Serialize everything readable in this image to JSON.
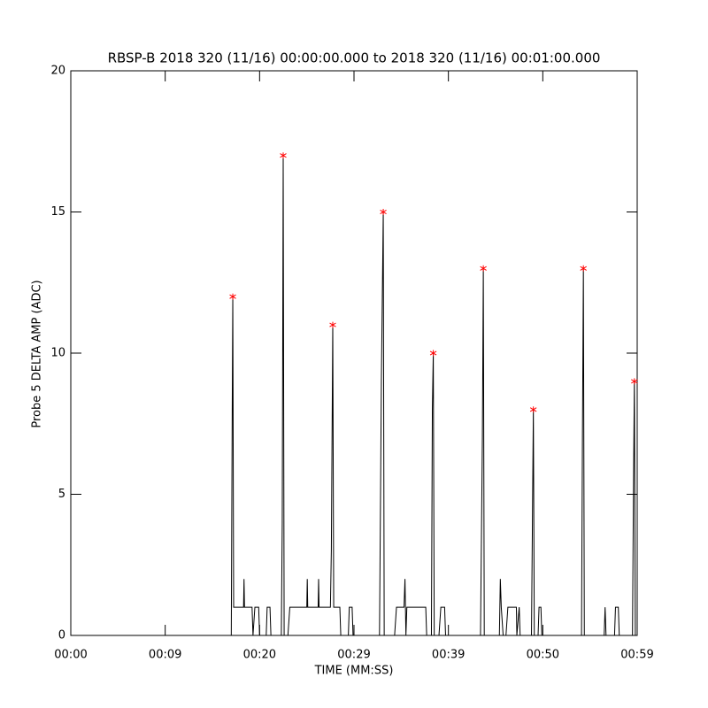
{
  "chart_data": {
    "type": "line",
    "title": "RBSP-B 2018 320 (11/16) 00:00:00.000 to 2018 320 (11/16) 00:01:00.000",
    "x_label": "TIME (MM:SS)",
    "y_label": "Probe 5 DELTA AMP (ADC)",
    "xlim": [
      0,
      60
    ],
    "ylim": [
      0,
      20
    ],
    "xticks": [
      {
        "value": 0,
        "label": "00:00"
      },
      {
        "value": 10,
        "label": "00:09"
      },
      {
        "value": 20,
        "label": "00:20"
      },
      {
        "value": 30,
        "label": "00:29"
      },
      {
        "value": 40,
        "label": "00:39"
      },
      {
        "value": 50,
        "label": "00:50"
      },
      {
        "value": 60,
        "label": "00:59"
      }
    ],
    "yticks": [
      0,
      5,
      10,
      15,
      20
    ],
    "line": {
      "color": "#000000",
      "x": [
        0,
        17.0,
        17.1,
        17.16,
        17.25,
        18.3,
        18.35,
        18.4,
        19.2,
        19.3,
        19.5,
        19.9,
        20.0,
        20.7,
        20.8,
        21.1,
        21.2,
        22.3,
        22.4,
        22.5,
        22.6,
        23.0,
        23.2,
        25.0,
        25.05,
        25.1,
        26.2,
        26.25,
        26.3,
        27.5,
        27.6,
        27.75,
        27.85,
        28.5,
        28.6,
        29.4,
        29.5,
        29.8,
        29.9,
        32.7,
        32.9,
        33.1,
        33.2,
        34.3,
        34.5,
        35.3,
        35.4,
        35.5,
        35.6,
        37.6,
        37.7,
        38.2,
        38.3,
        38.4,
        38.5,
        39.0,
        39.2,
        39.6,
        39.7,
        43.4,
        43.6,
        43.7,
        43.8,
        45.4,
        45.5,
        45.6,
        45.8,
        46.1,
        46.3,
        47.2,
        47.25,
        47.5,
        47.6,
        48.8,
        48.9,
        49.0,
        49.1,
        49.5,
        49.6,
        49.8,
        49.9,
        54.1,
        54.2,
        54.3,
        54.4,
        56.5,
        56.6,
        56.7,
        57.6,
        57.7,
        58.0,
        58.1,
        59.5,
        59.6,
        59.7,
        59.8,
        60
      ],
      "values": [
        0,
        0,
        8,
        12,
        1,
        1,
        2,
        1,
        1,
        0,
        1,
        1,
        0,
        0,
        1,
        1,
        0,
        0,
        4,
        17,
        0,
        0,
        1,
        1,
        2,
        1,
        1,
        2,
        1,
        1,
        3,
        11,
        1,
        1,
        0,
        0,
        1,
        1,
        0,
        0,
        9,
        15,
        0,
        0,
        1,
        1,
        2,
        0,
        1,
        1,
        0,
        0,
        8,
        10,
        0,
        0,
        1,
        1,
        0,
        0,
        7,
        13,
        0,
        0,
        2,
        1,
        0,
        0,
        1,
        1,
        0,
        1,
        0,
        0,
        4,
        8,
        0,
        0,
        1,
        1,
        0,
        0,
        7,
        13,
        0,
        0,
        1,
        0,
        0,
        1,
        1,
        0,
        0,
        5,
        9,
        0,
        0
      ]
    },
    "peaks": {
      "color": "#ff0000",
      "x": [
        17.16,
        22.5,
        27.75,
        33.1,
        38.4,
        43.7,
        49.0,
        54.3,
        59.7
      ],
      "values": [
        12,
        17,
        11,
        15,
        10,
        13,
        8,
        13,
        9
      ]
    }
  }
}
